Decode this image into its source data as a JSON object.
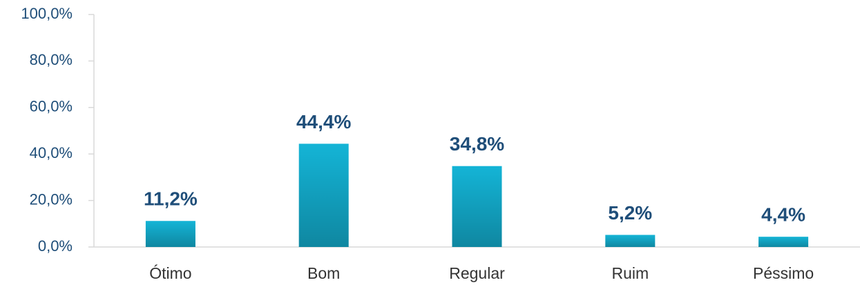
{
  "chart_data": {
    "type": "bar",
    "categories": [
      "Ótimo",
      "Bom",
      "Regular",
      "Ruim",
      "Péssimo"
    ],
    "values": [
      11.2,
      44.4,
      34.8,
      5.2,
      4.4
    ],
    "value_labels": [
      "11,2%",
      "44,4%",
      "34,8%",
      "5,2%",
      "4,4%"
    ],
    "color": "#14b4d6",
    "ylim": [
      0,
      100
    ],
    "yticks": [
      {
        "value": 0,
        "label": "0,0%"
      },
      {
        "value": 20,
        "label": "20,0%"
      },
      {
        "value": 40,
        "label": "40,0%"
      },
      {
        "value": 60,
        "label": "60,0%"
      },
      {
        "value": 80,
        "label": "80,0%"
      },
      {
        "value": 100,
        "label": "100,0%"
      }
    ]
  }
}
